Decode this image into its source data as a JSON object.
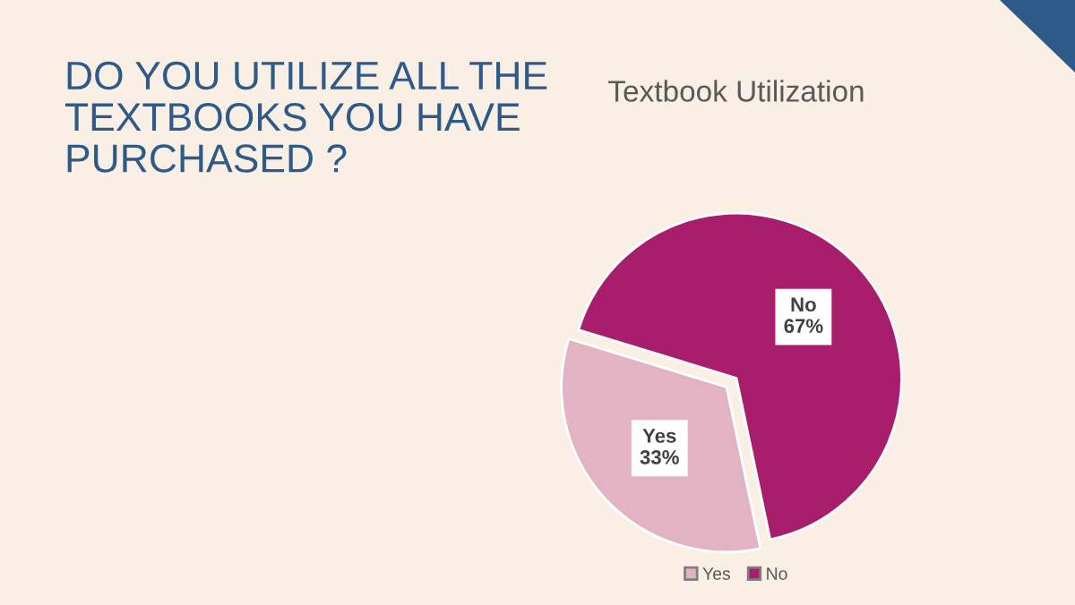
{
  "chart_data": {
    "type": "pie",
    "title": "DO YOU UTILIZE ALL THE TEXTBOOKS YOU HAVE PURCHASED ?",
    "subtitle": "Textbook Utilization",
    "categories": [
      "Yes",
      "No"
    ],
    "values": [
      33,
      67
    ],
    "colors": [
      "#e2b3c2",
      "#a91e6c"
    ],
    "value_labels": [
      "33%",
      "67%"
    ],
    "legend": "bottom"
  }
}
